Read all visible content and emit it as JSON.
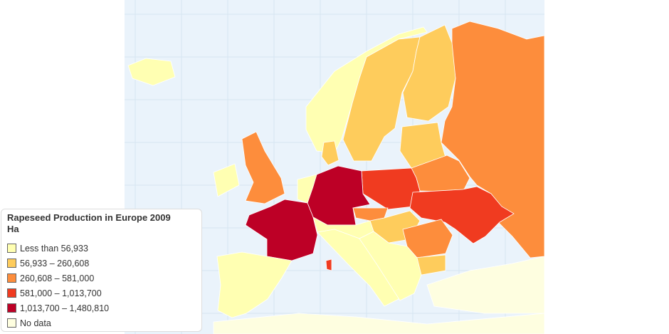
{
  "legend": {
    "title": "Rapeseed Production in Europe 2009",
    "subtitle": "Ha",
    "items": [
      {
        "label": "Less than 56,933",
        "color": "#ffffb2"
      },
      {
        "label": "56,933 – 260,608",
        "color": "#fecc5c"
      },
      {
        "label": "260,608 – 581,000",
        "color": "#fd8d3c"
      },
      {
        "label": "581,000 – 1,013,700",
        "color": "#f03b20"
      },
      {
        "label": "1,013,700 – 1,480,810",
        "color": "#bd0026"
      },
      {
        "label": "No data",
        "color": "#fefee0"
      }
    ]
  },
  "colors": {
    "sea": "#eaf3fb",
    "grid": "#d6e6f2"
  }
}
